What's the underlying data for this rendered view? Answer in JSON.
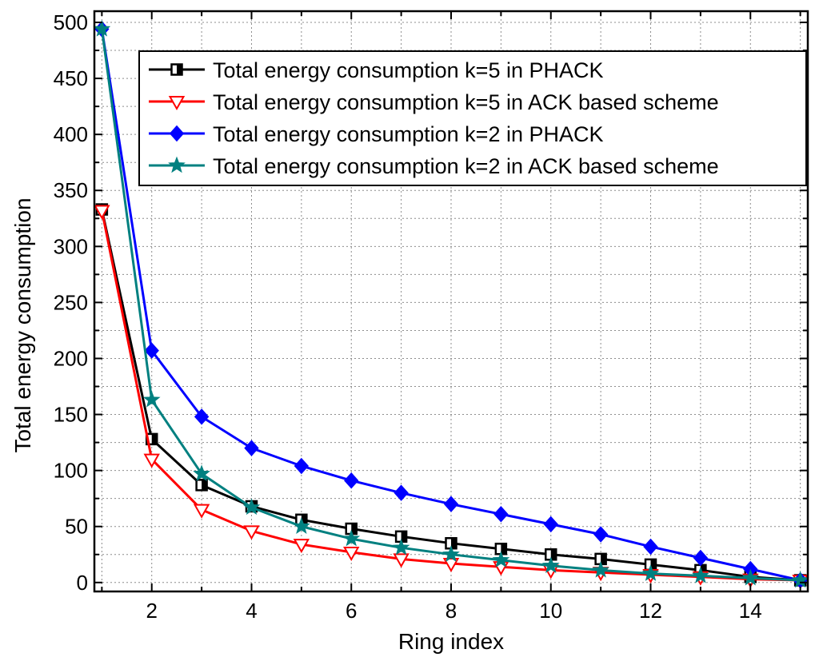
{
  "chart_data": {
    "type": "line",
    "title": "",
    "xlabel": "Ring index",
    "ylabel": "Total energy consumption",
    "xlim": [
      0.85,
      15.15
    ],
    "ylim": [
      -8,
      510
    ],
    "grid": true,
    "legend_position": "top-right",
    "x_ticks": [
      2,
      4,
      6,
      8,
      10,
      12,
      14
    ],
    "x_tick_labels": [
      "2",
      "4",
      "6",
      "8",
      "10",
      "12",
      "14"
    ],
    "y_ticks": [
      0,
      50,
      100,
      150,
      200,
      250,
      300,
      350,
      400,
      450,
      500
    ],
    "y_tick_labels": [
      "0",
      "50",
      "100",
      "150",
      "200",
      "250",
      "300",
      "350",
      "400",
      "450",
      "500"
    ],
    "x": [
      1,
      2,
      3,
      4,
      5,
      6,
      7,
      8,
      9,
      10,
      11,
      12,
      13,
      14,
      15
    ],
    "series": [
      {
        "name": "Total energy consumption k=5 in PHACK",
        "color": "#000000",
        "marker": "half-filled-square",
        "values": [
          333,
          128,
          87,
          68,
          56,
          48,
          41,
          35,
          30,
          25,
          21,
          16,
          11,
          5,
          2
        ]
      },
      {
        "name": "Total energy consumption k=5 in ACK based scheme",
        "color": "#ff0000",
        "marker": "hollow-triangle-down",
        "values": [
          332,
          110,
          65,
          46,
          34,
          27,
          21,
          17,
          14,
          11,
          9,
          7,
          5,
          3,
          2
        ]
      },
      {
        "name": "Total energy consumption k=2 in PHACK",
        "color": "#0000ff",
        "marker": "filled-diamond",
        "values": [
          494,
          207,
          148,
          120,
          104,
          91,
          80,
          70,
          61,
          52,
          43,
          32,
          22,
          12,
          2
        ]
      },
      {
        "name": "Total energy consumption k=2 in ACK based scheme",
        "color": "#008080",
        "marker": "star",
        "values": [
          494,
          163,
          97,
          67,
          50,
          39,
          31,
          25,
          20,
          15,
          11,
          8,
          6,
          4,
          2
        ]
      }
    ]
  }
}
